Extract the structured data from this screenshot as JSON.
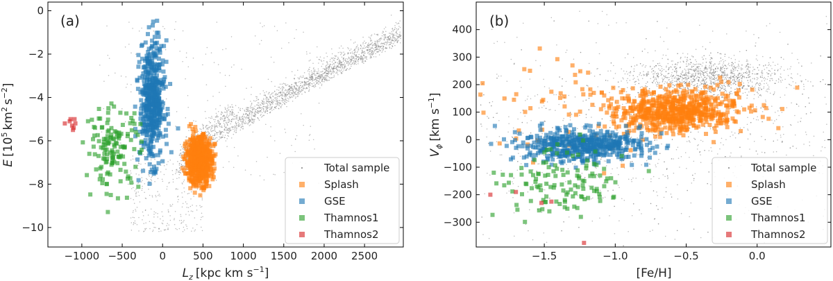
{
  "chart_data": [
    {
      "type": "scatter",
      "panel_label": "(a)",
      "xlabel_main": "L",
      "xlabel_sub": "z",
      "xlabel_unit": "[kpc km s",
      "xlabel_exp": "−1",
      "xlabel_close": "]",
      "ylabel_main": "E",
      "ylabel_unit": "[10",
      "ylabel_exp1": "5",
      "ylabel_mid": "km",
      "ylabel_exp2": "2",
      "ylabel_mid2": "s",
      "ylabel_exp3": "−2",
      "ylabel_close": "]",
      "xlim": [
        -1420,
        2980
      ],
      "ylim": [
        -10.9,
        0.4
      ],
      "xticks": [
        -1000,
        -500,
        0,
        500,
        1000,
        1500,
        2000,
        2500
      ],
      "xtick_labels": [
        "−1000",
        "−500",
        "0",
        "500",
        "1000",
        "1500",
        "2000",
        "2500"
      ],
      "yticks": [
        0,
        -2,
        -4,
        -6,
        -8,
        -10
      ],
      "ytick_labels": [
        "0",
        "−2",
        "−4",
        "−6",
        "−8",
        "−10"
      ],
      "legend_location": "lower-right",
      "series": [
        {
          "name": "Total sample",
          "color": "#7f7f7f",
          "marker": "dot",
          "approx_region": {
            "x_range": [
              -400,
              2950
            ],
            "y_range": [
              -10.5,
              -1.6
            ]
          }
        },
        {
          "name": "Splash",
          "color": "#ff7f0e",
          "marker": "square",
          "approx_region": {
            "x_range": [
              150,
              680
            ],
            "y_range": [
              -9.1,
              -5.0
            ]
          }
        },
        {
          "name": "GSE",
          "color": "#1f77b4",
          "marker": "square",
          "approx_region": {
            "x_range": [
              -350,
              150
            ],
            "y_range": [
              -8.1,
              -0.1
            ]
          }
        },
        {
          "name": "Thamnos1",
          "color": "#2ca02c",
          "marker": "square",
          "approx_region": {
            "x_range": [
              -1000,
              -260
            ],
            "y_range": [
              -8.6,
              -4.4
            ]
          }
        },
        {
          "name": "Thamnos2",
          "color": "#d62728",
          "marker": "square",
          "points": [
            [
              -1080,
              -5.2
            ],
            [
              -1150,
              -5.1
            ],
            [
              -1120,
              -5.3
            ],
            [
              -1100,
              -5.4
            ],
            [
              -1090,
              -5.0
            ],
            [
              -1210,
              -5.2
            ],
            [
              -1140,
              -5.0
            ],
            [
              -1110,
              -5.5
            ]
          ]
        }
      ],
      "legend": [
        {
          "label": "Total sample",
          "color": "#7f7f7f",
          "marker": "dot"
        },
        {
          "label": "Splash",
          "color": "#ff7f0e",
          "marker": "square"
        },
        {
          "label": "GSE",
          "color": "#1f77b4",
          "marker": "square"
        },
        {
          "label": "Thamnos1",
          "color": "#2ca02c",
          "marker": "square"
        },
        {
          "label": "Thamnos2",
          "color": "#d62728",
          "marker": "square"
        }
      ]
    },
    {
      "type": "scatter",
      "panel_label": "(b)",
      "xlabel": "[Fe/H]",
      "ylabel_main": "V",
      "ylabel_sub": "ϕ",
      "ylabel_unit": "[km s",
      "ylabel_exp": "−1",
      "ylabel_close": "]",
      "xlim": [
        -1.98,
        0.52
      ],
      "ylim": [
        -390,
        500
      ],
      "xticks": [
        -1.5,
        -1.0,
        -0.5,
        0.0
      ],
      "xtick_labels": [
        "−1.5",
        "−1.0",
        "−0.5",
        "0.0"
      ],
      "yticks": [
        400,
        300,
        200,
        100,
        0,
        -100,
        -200,
        -300
      ],
      "ytick_labels": [
        "400",
        "300",
        "200",
        "100",
        "0",
        "−100",
        "−200",
        "−300"
      ],
      "legend_location": "lower-right",
      "series": [
        {
          "name": "Total sample",
          "color": "#7f7f7f",
          "marker": "dot",
          "approx_region": {
            "x_range": [
              -1.95,
              0.5
            ],
            "y_range": [
              -380,
              480
            ]
          }
        },
        {
          "name": "Splash",
          "color": "#ff7f0e",
          "marker": "square",
          "approx_region": {
            "x_range": [
              -1.6,
              0.3
            ],
            "y_range": [
              -40,
              350
            ]
          }
        },
        {
          "name": "GSE",
          "color": "#1f77b4",
          "marker": "square",
          "approx_region": {
            "x_range": [
              -1.9,
              -0.6
            ],
            "y_range": [
              -110,
              80
            ]
          }
        },
        {
          "name": "Thamnos1",
          "color": "#2ca02c",
          "marker": "square",
          "approx_region": {
            "x_range": [
              -1.95,
              -0.95
            ],
            "y_range": [
              -330,
              -40
            ]
          }
        },
        {
          "name": "Thamnos2",
          "color": "#d62728",
          "marker": "square",
          "points": [
            [
              -1.88,
              -200
            ],
            [
              -1.52,
              -230
            ],
            [
              -1.45,
              -225
            ],
            [
              -1.22,
              -375
            ],
            [
              -1.7,
              -190
            ]
          ]
        }
      ],
      "legend": [
        {
          "label": "Total sample",
          "color": "#7f7f7f",
          "marker": "dot"
        },
        {
          "label": "Splash",
          "color": "#ff7f0e",
          "marker": "square"
        },
        {
          "label": "GSE",
          "color": "#1f77b4",
          "marker": "square"
        },
        {
          "label": "Thamnos1",
          "color": "#2ca02c",
          "marker": "square"
        },
        {
          "label": "Thamnos2",
          "color": "#d62728",
          "marker": "square"
        }
      ]
    }
  ]
}
